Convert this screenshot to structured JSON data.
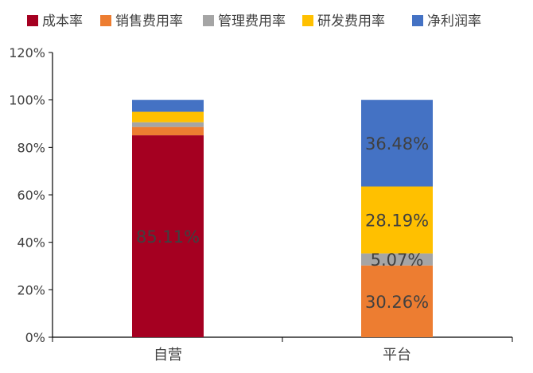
{
  "chart_data": {
    "type": "bar",
    "stacked": true,
    "categories": [
      "自营",
      "平台"
    ],
    "series": [
      {
        "name": "成本率",
        "color": "#A50021",
        "values": [
          85.11,
          0
        ],
        "labels": [
          "85.11%",
          ""
        ]
      },
      {
        "name": "销售费用率",
        "color": "#ED7D31",
        "values": [
          3.5,
          30.26
        ],
        "labels": [
          "",
          "30.26%"
        ]
      },
      {
        "name": "管理费用率",
        "color": "#A5A5A5",
        "values": [
          2.0,
          5.07
        ],
        "labels": [
          "",
          "5.07%"
        ]
      },
      {
        "name": "研发费用率",
        "color": "#FFC000",
        "values": [
          4.4,
          28.19
        ],
        "labels": [
          "",
          "28.19%"
        ]
      },
      {
        "name": "净利润率",
        "color": "#4472C4",
        "values": [
          4.99,
          36.48
        ],
        "labels": [
          "",
          "36.48%"
        ]
      }
    ],
    "ylim": [
      0,
      120
    ],
    "yticks": [
      0,
      20,
      40,
      60,
      80,
      100,
      120
    ],
    "ytick_labels": [
      "0%",
      "20%",
      "40%",
      "60%",
      "80%",
      "100%",
      "120%"
    ],
    "legend_position": "top",
    "grid": false,
    "label_color": "#404040"
  }
}
